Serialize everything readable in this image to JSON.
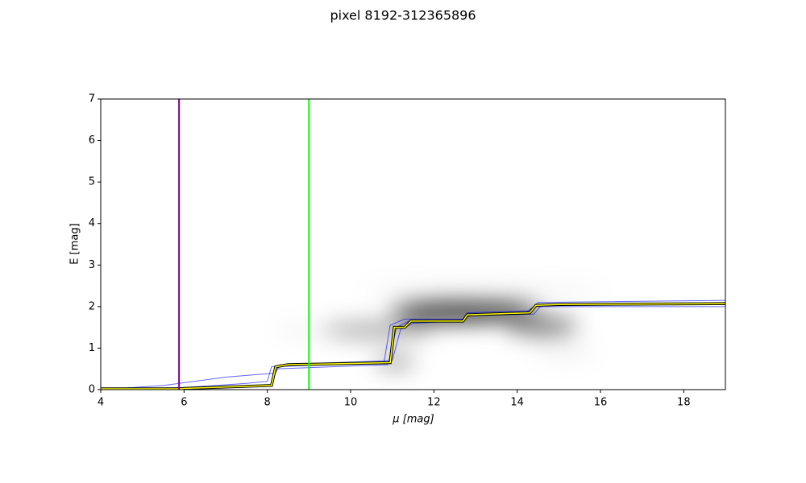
{
  "chart_data": {
    "type": "line",
    "title": "pixel 8192-312365896",
    "xlabel": "μ [mag]",
    "ylabel": "E [mag]",
    "xlim": [
      4,
      19
    ],
    "ylim": [
      0,
      7
    ],
    "xticks": [
      4,
      6,
      8,
      10,
      12,
      14,
      16,
      18
    ],
    "yticks": [
      0,
      1,
      2,
      3,
      4,
      5,
      6,
      7
    ],
    "vlines": [
      {
        "x": 5.88,
        "color": "#800080"
      },
      {
        "x": 9.0,
        "color": "#00ff00"
      }
    ],
    "series": [
      {
        "color": "#0000ff",
        "x": [
          4,
          6,
          7.5,
          8.0,
          8.1,
          10.8,
          10.95,
          11.3,
          12.7,
          12.8,
          14.3,
          14.5,
          19
        ],
        "values": [
          0,
          0.05,
          0.15,
          0.2,
          0.55,
          0.65,
          1.55,
          1.7,
          1.7,
          1.85,
          1.9,
          2.1,
          2.15
        ]
      },
      {
        "color": "#0000ff",
        "x": [
          4,
          5.5,
          7,
          8.2,
          8.3,
          11.0,
          11.2,
          11.5,
          12.6,
          12.9,
          14.2,
          14.4,
          19
        ],
        "values": [
          0,
          0.1,
          0.3,
          0.4,
          0.6,
          0.7,
          1.45,
          1.6,
          1.65,
          1.8,
          1.85,
          2.0,
          2.0
        ]
      },
      {
        "color": "#0000ff",
        "x": [
          4,
          6.2,
          7.8,
          8.1,
          8.2,
          10.9,
          11.1,
          11.4,
          12.7,
          12.8,
          14.4,
          14.6,
          19
        ],
        "values": [
          0,
          0.02,
          0.1,
          0.12,
          0.5,
          0.6,
          1.5,
          1.65,
          1.65,
          1.78,
          1.82,
          2.05,
          2.1
        ]
      },
      {
        "color": "#ffff00",
        "x": [
          4,
          5.9,
          6.0,
          8.1,
          8.2,
          8.5,
          10.95,
          11.05,
          11.3,
          11.45,
          12.7,
          12.8,
          14.3,
          14.45,
          15,
          19
        ],
        "values": [
          0.02,
          0.02,
          0.03,
          0.1,
          0.55,
          0.6,
          0.65,
          1.5,
          1.5,
          1.65,
          1.65,
          1.8,
          1.85,
          2.03,
          2.05,
          2.07
        ]
      }
    ]
  }
}
